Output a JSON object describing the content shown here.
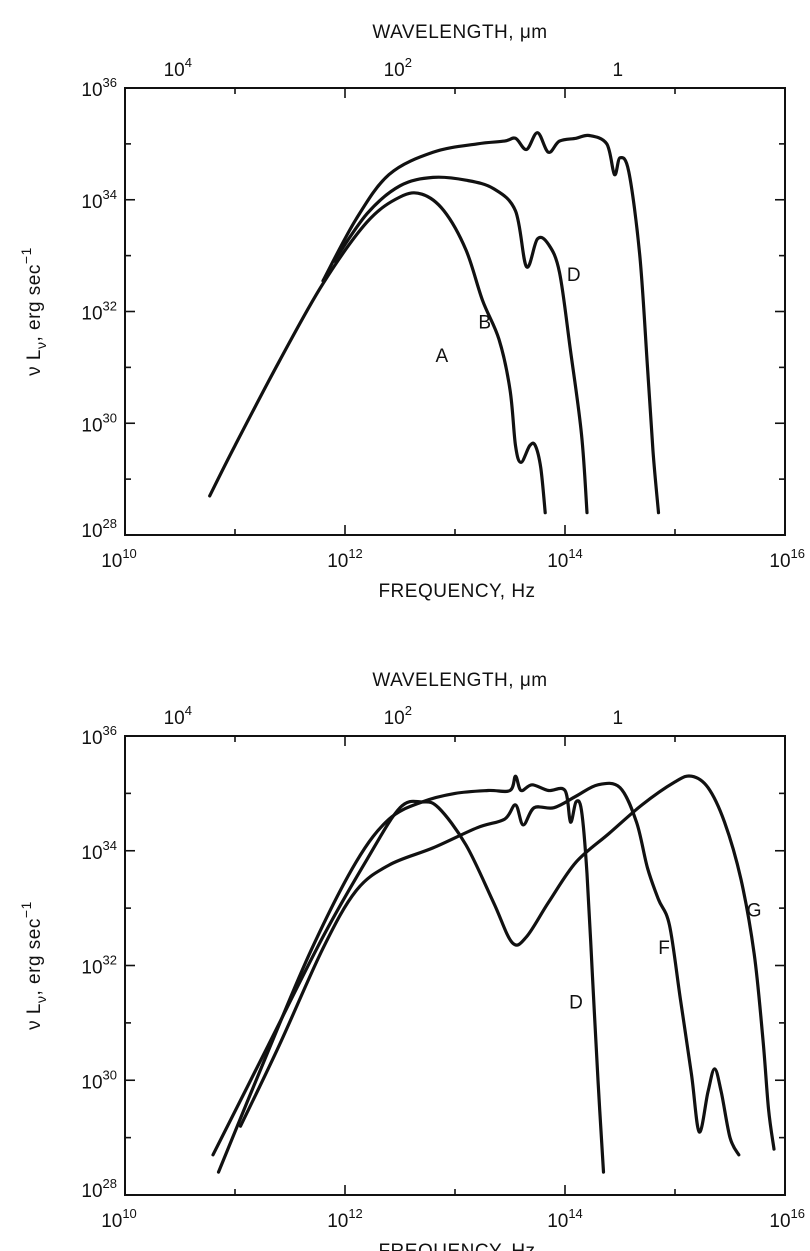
{
  "chart_data": [
    {
      "type": "line",
      "top_axis_title": "WAVELENGTH, μm",
      "top_ticks": [
        {
          "mantissa": "10",
          "exp": "4",
          "freq_log": 10.48
        },
        {
          "mantissa": "10",
          "exp": "2",
          "freq_log": 12.48
        },
        {
          "mantissa": "1",
          "exp": "",
          "freq_log": 14.48
        }
      ],
      "x_title": "FREQUENCY, Hz",
      "x_scale": "log",
      "x_lim": [
        10,
        16
      ],
      "x_ticks": [
        {
          "mantissa": "10",
          "exp": "10",
          "log": 10
        },
        {
          "mantissa": "10",
          "exp": "12",
          "log": 12
        },
        {
          "mantissa": "10",
          "exp": "14",
          "log": 14
        },
        {
          "mantissa": "10",
          "exp": "16",
          "log": 16
        }
      ],
      "y_title": "ν L",
      "y_title_sub": "ν",
      "y_title_rest": ", erg sec",
      "y_title_exp": "−1",
      "y_scale": "log",
      "y_lim": [
        28,
        36
      ],
      "y_ticks": [
        {
          "mantissa": "10",
          "exp": "28",
          "log": 28
        },
        {
          "mantissa": "10",
          "exp": "30",
          "log": 30
        },
        {
          "mantissa": "10",
          "exp": "32",
          "log": 32
        },
        {
          "mantissa": "10",
          "exp": "34",
          "log": 34
        },
        {
          "mantissa": "10",
          "exp": "36",
          "log": 36
        }
      ],
      "series": [
        {
          "name": "A",
          "label_at": [
            12.88,
            31.1
          ],
          "points": [
            [
              10.77,
              28.7
            ],
            [
              11.0,
              29.6
            ],
            [
              11.4,
              31.1
            ],
            [
              11.8,
              32.5
            ],
            [
              12.2,
              33.6
            ],
            [
              12.5,
              34.05
            ],
            [
              12.7,
              34.1
            ],
            [
              12.9,
              33.8
            ],
            [
              13.1,
              33.1
            ],
            [
              13.25,
              32.2
            ],
            [
              13.4,
              31.5
            ],
            [
              13.5,
              30.6
            ],
            [
              13.55,
              29.6
            ],
            [
              13.6,
              29.3
            ],
            [
              13.68,
              29.6
            ],
            [
              13.73,
              29.6
            ],
            [
              13.78,
              29.2
            ],
            [
              13.82,
              28.4
            ]
          ]
        },
        {
          "name": "B",
          "label_at": [
            13.27,
            31.7
          ],
          "points": [
            [
              11.9,
              32.9
            ],
            [
              12.2,
              33.75
            ],
            [
              12.5,
              34.25
            ],
            [
              12.8,
              34.4
            ],
            [
              13.1,
              34.35
            ],
            [
              13.35,
              34.2
            ],
            [
              13.55,
              33.8
            ],
            [
              13.65,
              32.8
            ],
            [
              13.75,
              33.3
            ],
            [
              13.85,
              33.2
            ],
            [
              13.95,
              32.7
            ],
            [
              14.05,
              31.3
            ],
            [
              14.15,
              29.8
            ],
            [
              14.2,
              28.4
            ]
          ]
        },
        {
          "name": "D",
          "label_at": [
            14.08,
            32.55
          ],
          "points": [
            [
              11.8,
              32.55
            ],
            [
              12.1,
              33.65
            ],
            [
              12.4,
              34.45
            ],
            [
              12.8,
              34.85
            ],
            [
              13.2,
              35.0
            ],
            [
              13.45,
              35.05
            ],
            [
              13.55,
              35.1
            ],
            [
              13.65,
              34.9
            ],
            [
              13.75,
              35.2
            ],
            [
              13.85,
              34.85
            ],
            [
              13.95,
              35.05
            ],
            [
              14.1,
              35.1
            ],
            [
              14.22,
              35.15
            ],
            [
              14.38,
              35.0
            ],
            [
              14.45,
              34.45
            ],
            [
              14.5,
              34.75
            ],
            [
              14.58,
              34.5
            ],
            [
              14.68,
              33.0
            ],
            [
              14.75,
              31.0
            ],
            [
              14.8,
              29.5
            ],
            [
              14.85,
              28.4
            ]
          ]
        }
      ]
    },
    {
      "type": "line",
      "top_axis_title": "WAVELENGTH, μm",
      "top_ticks": [
        {
          "mantissa": "10",
          "exp": "4",
          "freq_log": 10.48
        },
        {
          "mantissa": "10",
          "exp": "2",
          "freq_log": 12.48
        },
        {
          "mantissa": "1",
          "exp": "",
          "freq_log": 14.48
        }
      ],
      "x_title": "FREQUENCY, Hz",
      "x_scale": "log",
      "x_lim": [
        10,
        16
      ],
      "x_ticks": [
        {
          "mantissa": "10",
          "exp": "10",
          "log": 10
        },
        {
          "mantissa": "10",
          "exp": "12",
          "log": 12
        },
        {
          "mantissa": "10",
          "exp": "14",
          "log": 14
        },
        {
          "mantissa": "10",
          "exp": "16",
          "log": 16
        }
      ],
      "y_title": "ν L",
      "y_title_sub": "ν",
      "y_title_rest": ", erg sec",
      "y_title_exp": "−1",
      "y_scale": "log",
      "y_lim": [
        28,
        36
      ],
      "y_ticks": [
        {
          "mantissa": "10",
          "exp": "28",
          "log": 28
        },
        {
          "mantissa": "10",
          "exp": "30",
          "log": 30
        },
        {
          "mantissa": "10",
          "exp": "32",
          "log": 32
        },
        {
          "mantissa": "10",
          "exp": "34",
          "log": 34
        },
        {
          "mantissa": "10",
          "exp": "36",
          "log": 36
        }
      ],
      "series": [
        {
          "name": "D",
          "label_at": [
            14.1,
            31.25
          ],
          "points": [
            [
              10.85,
              28.4
            ],
            [
              11.3,
              30.5
            ],
            [
              11.7,
              32.3
            ],
            [
              12.1,
              33.8
            ],
            [
              12.4,
              34.55
            ],
            [
              12.7,
              34.85
            ],
            [
              13.0,
              35.0
            ],
            [
              13.3,
              35.05
            ],
            [
              13.5,
              35.05
            ],
            [
              13.55,
              35.3
            ],
            [
              13.6,
              35.05
            ],
            [
              13.7,
              35.15
            ],
            [
              13.85,
              35.05
            ],
            [
              14.0,
              35.05
            ],
            [
              14.05,
              34.5
            ],
            [
              14.1,
              34.85
            ],
            [
              14.15,
              34.7
            ],
            [
              14.2,
              33.6
            ],
            [
              14.25,
              31.8
            ],
            [
              14.3,
              30.0
            ],
            [
              14.35,
              28.4
            ]
          ]
        },
        {
          "name": "F",
          "label_at": [
            14.9,
            32.2
          ],
          "points": [
            [
              11.05,
              29.2
            ],
            [
              11.4,
              30.6
            ],
            [
              11.8,
              32.3
            ],
            [
              12.1,
              33.3
            ],
            [
              12.4,
              33.75
            ],
            [
              12.8,
              34.05
            ],
            [
              13.2,
              34.4
            ],
            [
              13.45,
              34.55
            ],
            [
              13.55,
              34.8
            ],
            [
              13.62,
              34.45
            ],
            [
              13.72,
              34.75
            ],
            [
              13.9,
              34.75
            ],
            [
              14.1,
              34.95
            ],
            [
              14.3,
              35.15
            ],
            [
              14.5,
              35.1
            ],
            [
              14.65,
              34.5
            ],
            [
              14.75,
              33.7
            ],
            [
              14.85,
              33.15
            ],
            [
              14.95,
              32.7
            ],
            [
              15.05,
              31.4
            ],
            [
              15.15,
              30.1
            ],
            [
              15.22,
              29.1
            ],
            [
              15.3,
              29.8
            ],
            [
              15.36,
              30.2
            ],
            [
              15.42,
              29.8
            ],
            [
              15.5,
              29.0
            ],
            [
              15.58,
              28.7
            ]
          ]
        },
        {
          "name": "G",
          "label_at": [
            15.72,
            32.85
          ],
          "points": [
            [
              10.8,
              28.7
            ],
            [
              11.3,
              30.6
            ],
            [
              11.8,
              32.5
            ],
            [
              12.2,
              33.85
            ],
            [
              12.5,
              34.75
            ],
            [
              12.7,
              34.85
            ],
            [
              12.85,
              34.75
            ],
            [
              13.1,
              34.1
            ],
            [
              13.35,
              33.1
            ],
            [
              13.52,
              32.4
            ],
            [
              13.65,
              32.5
            ],
            [
              13.85,
              33.1
            ],
            [
              14.1,
              33.8
            ],
            [
              14.4,
              34.3
            ],
            [
              14.7,
              34.8
            ],
            [
              15.0,
              35.2
            ],
            [
              15.15,
              35.3
            ],
            [
              15.3,
              35.1
            ],
            [
              15.45,
              34.5
            ],
            [
              15.6,
              33.5
            ],
            [
              15.72,
              32.2
            ],
            [
              15.8,
              30.7
            ],
            [
              15.85,
              29.5
            ],
            [
              15.9,
              28.8
            ]
          ]
        }
      ]
    }
  ]
}
